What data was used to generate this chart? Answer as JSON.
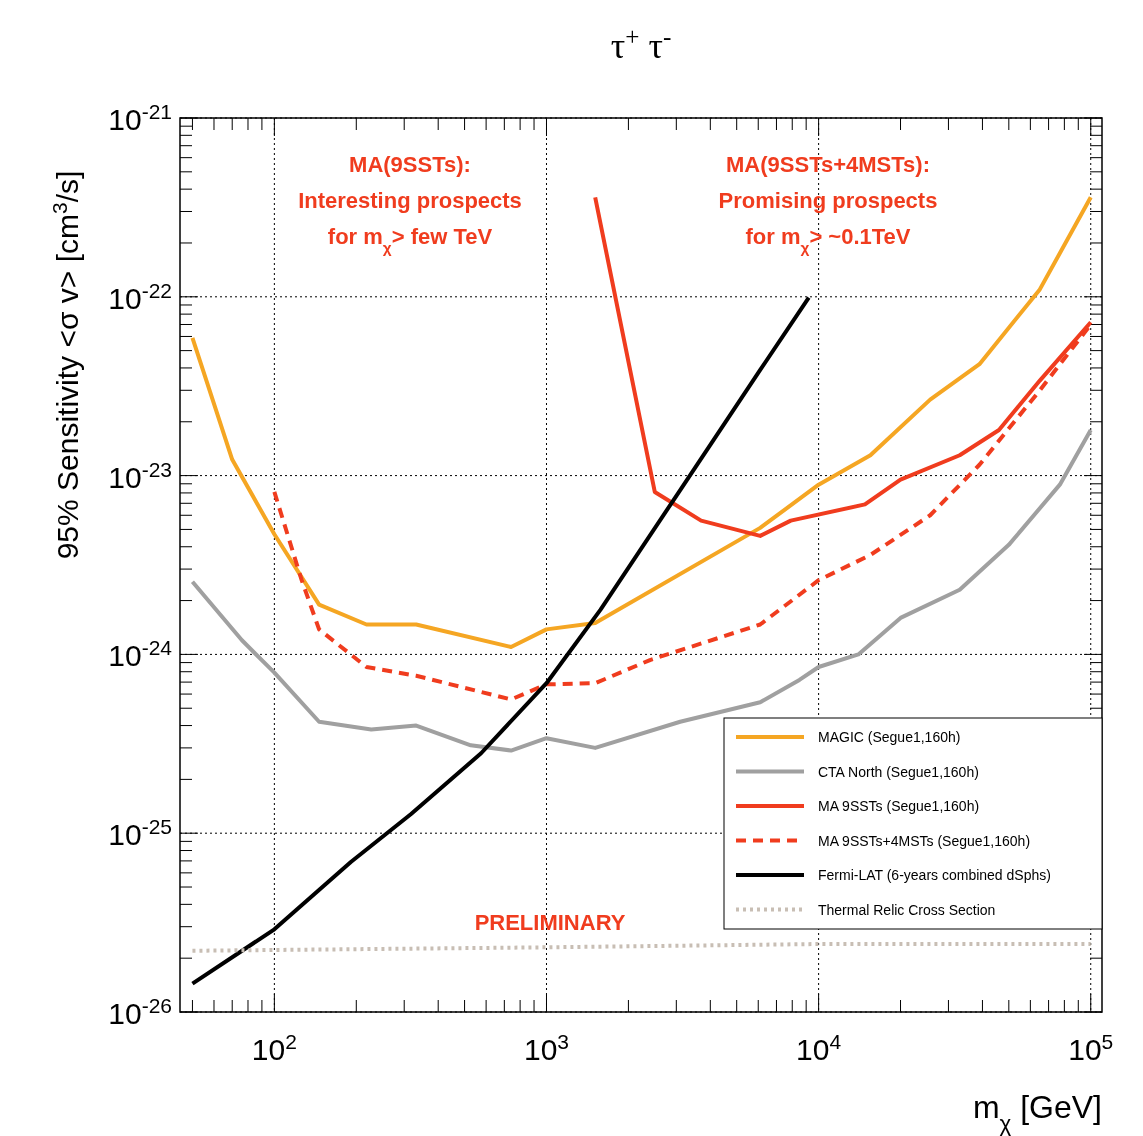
{
  "chart_data": {
    "type": "line",
    "title": "τ$^{+}$ τ$^{-}$",
    "xlabel": "m$_{χ}$ [GeV]",
    "ylabel": "95% Sensitivity <σ v> [cm$^{3}$/s]",
    "log": "xy",
    "grid": true,
    "legend": "bottom right",
    "xlim": [
      45,
      110000
    ],
    "ylim": [
      1e-26,
      1e-21
    ],
    "xticks": [
      {
        "value": 50,
        "label": null
      },
      {
        "value": 60,
        "label": null
      },
      {
        "value": 70,
        "label": null
      },
      {
        "value": 80,
        "label": null
      },
      {
        "value": 90,
        "label": null
      },
      {
        "value": 100,
        "label": "10$^{2}$"
      },
      {
        "value": 200,
        "label": null
      },
      {
        "value": 300,
        "label": null
      },
      {
        "value": 400,
        "label": null
      },
      {
        "value": 500,
        "label": null
      },
      {
        "value": 600,
        "label": null
      },
      {
        "value": 700,
        "label": null
      },
      {
        "value": 800,
        "label": null
      },
      {
        "value": 900,
        "label": null
      },
      {
        "value": 1000,
        "label": "10$^{3}$"
      },
      {
        "value": 2000,
        "label": null
      },
      {
        "value": 3000,
        "label": null
      },
      {
        "value": 4000,
        "label": null
      },
      {
        "value": 5000,
        "label": null
      },
      {
        "value": 6000,
        "label": null
      },
      {
        "value": 7000,
        "label": null
      },
      {
        "value": 8000,
        "label": null
      },
      {
        "value": 9000,
        "label": null
      },
      {
        "value": 10000,
        "label": "10$^{4}$"
      },
      {
        "value": 20000,
        "label": null
      },
      {
        "value": 30000,
        "label": null
      },
      {
        "value": 40000,
        "label": null
      },
      {
        "value": 50000,
        "label": null
      },
      {
        "value": 60000,
        "label": null
      },
      {
        "value": 70000,
        "label": null
      },
      {
        "value": 80000,
        "label": null
      },
      {
        "value": 90000,
        "label": null
      },
      {
        "value": 100000,
        "label": "10$^{5}$"
      }
    ],
    "yticks": [
      {
        "value": 1e-26,
        "label": "10$^{-26}$"
      },
      {
        "value": 1e-25,
        "label": "10$^{-25}$"
      },
      {
        "value": 1e-24,
        "label": "10$^{-24}$"
      },
      {
        "value": 1e-23,
        "label": "10$^{-23}$"
      },
      {
        "value": 1e-22,
        "label": "10$^{-22}$"
      },
      {
        "value": 1e-21,
        "label": "10$^{-21}$"
      }
    ],
    "series": [
      {
        "name": "MAGIC (Segue1,160h)",
        "color": "#f5a623",
        "line_style": "solid",
        "x": [
          50,
          70,
          100,
          146,
          218,
          332,
          741,
          1000,
          1510,
          6100,
          10000,
          15500,
          25700,
          39000,
          65000,
          100000
        ],
        "values": [
          5.9e-23,
          1.23e-23,
          4.7e-24,
          1.9e-24,
          1.47e-24,
          1.47e-24,
          1.1e-24,
          1.38e-24,
          1.5e-24,
          5.1e-24,
          8.9e-24,
          1.3e-23,
          2.66e-23,
          4.2e-23,
          1.1e-22,
          3.6e-22
        ]
      },
      {
        "name": "CTA North (Segue1,160h)",
        "color": "#a0a0a0",
        "line_style": "solid",
        "x": [
          50,
          76,
          100,
          146,
          227,
          332,
          527,
          741,
          1000,
          1510,
          3100,
          6100,
          8500,
          10000,
          14000,
          20000,
          33000,
          50000,
          77000,
          100000
        ],
        "values": [
          2.55e-24,
          1.2e-24,
          7.9e-25,
          4.2e-25,
          3.8e-25,
          4e-25,
          3.1e-25,
          2.9e-25,
          3.4e-25,
          3e-25,
          4.2e-25,
          5.4e-25,
          7.2e-25,
          8.5e-25,
          1e-24,
          1.6e-24,
          2.3e-24,
          4.1e-24,
          8.9e-24,
          1.8e-23
        ]
      },
      {
        "name": "MA 9SSTs (Segue1,160h)",
        "color": "#f03c1e",
        "line_style": "solid",
        "x": [
          1510,
          2500,
          3700,
          6100,
          7900,
          14800,
          20000,
          33000,
          46000,
          65000,
          100000
        ],
        "values": [
          3.6e-22,
          8.1e-24,
          5.6e-24,
          4.6e-24,
          5.6e-24,
          6.9e-24,
          9.5e-24,
          1.3e-23,
          1.8e-23,
          3.4e-23,
          7.2e-23
        ]
      },
      {
        "name": "MA 9SSTs+4MSTs (Segue1,160h)",
        "color": "#f03c1e",
        "line_style": "dashed",
        "x": [
          100,
          126,
          146,
          218,
          332,
          741,
          1000,
          1510,
          2400,
          6100,
          10000,
          15500,
          25700,
          39000,
          65000,
          100000
        ],
        "values": [
          8.1e-24,
          2.6e-24,
          1.38e-24,
          8.5e-25,
          7.6e-25,
          5.6e-25,
          6.8e-25,
          6.9e-25,
          9.3e-25,
          1.47e-24,
          2.6e-24,
          3.6e-24,
          6e-24,
          1.15e-23,
          3e-23,
          7e-23
        ]
      },
      {
        "name": "Fermi-LAT (6-years combined dSphs)",
        "color": "#000000",
        "line_style": "solid",
        "x": [
          50,
          100,
          191,
          318,
          575,
          1000,
          1580,
          3100,
          6100,
          9200
        ],
        "values": [
          1.44e-26,
          2.9e-26,
          6.9e-26,
          1.28e-25,
          2.8e-25,
          6.9e-25,
          1.78e-24,
          8.3e-24,
          3.9e-23,
          9.9e-23
        ]
      },
      {
        "name": "Thermal Relic Cross Section",
        "color": "#c8beb4",
        "line_style": "dotted",
        "x": [
          50,
          1000,
          10000,
          100000
        ],
        "values": [
          2.2e-26,
          2.3e-26,
          2.4e-26,
          2.4e-26
        ]
      }
    ],
    "annotations": [
      "MA(9SSTs):\nInteresting prospects\nfor m$_{χ}$> few TeV",
      "MA(9SSTs+4MSTs):\nPromising prospects\nfor m$_{χ}$> ~0.1TeV",
      "PRELIMINARY"
    ]
  }
}
